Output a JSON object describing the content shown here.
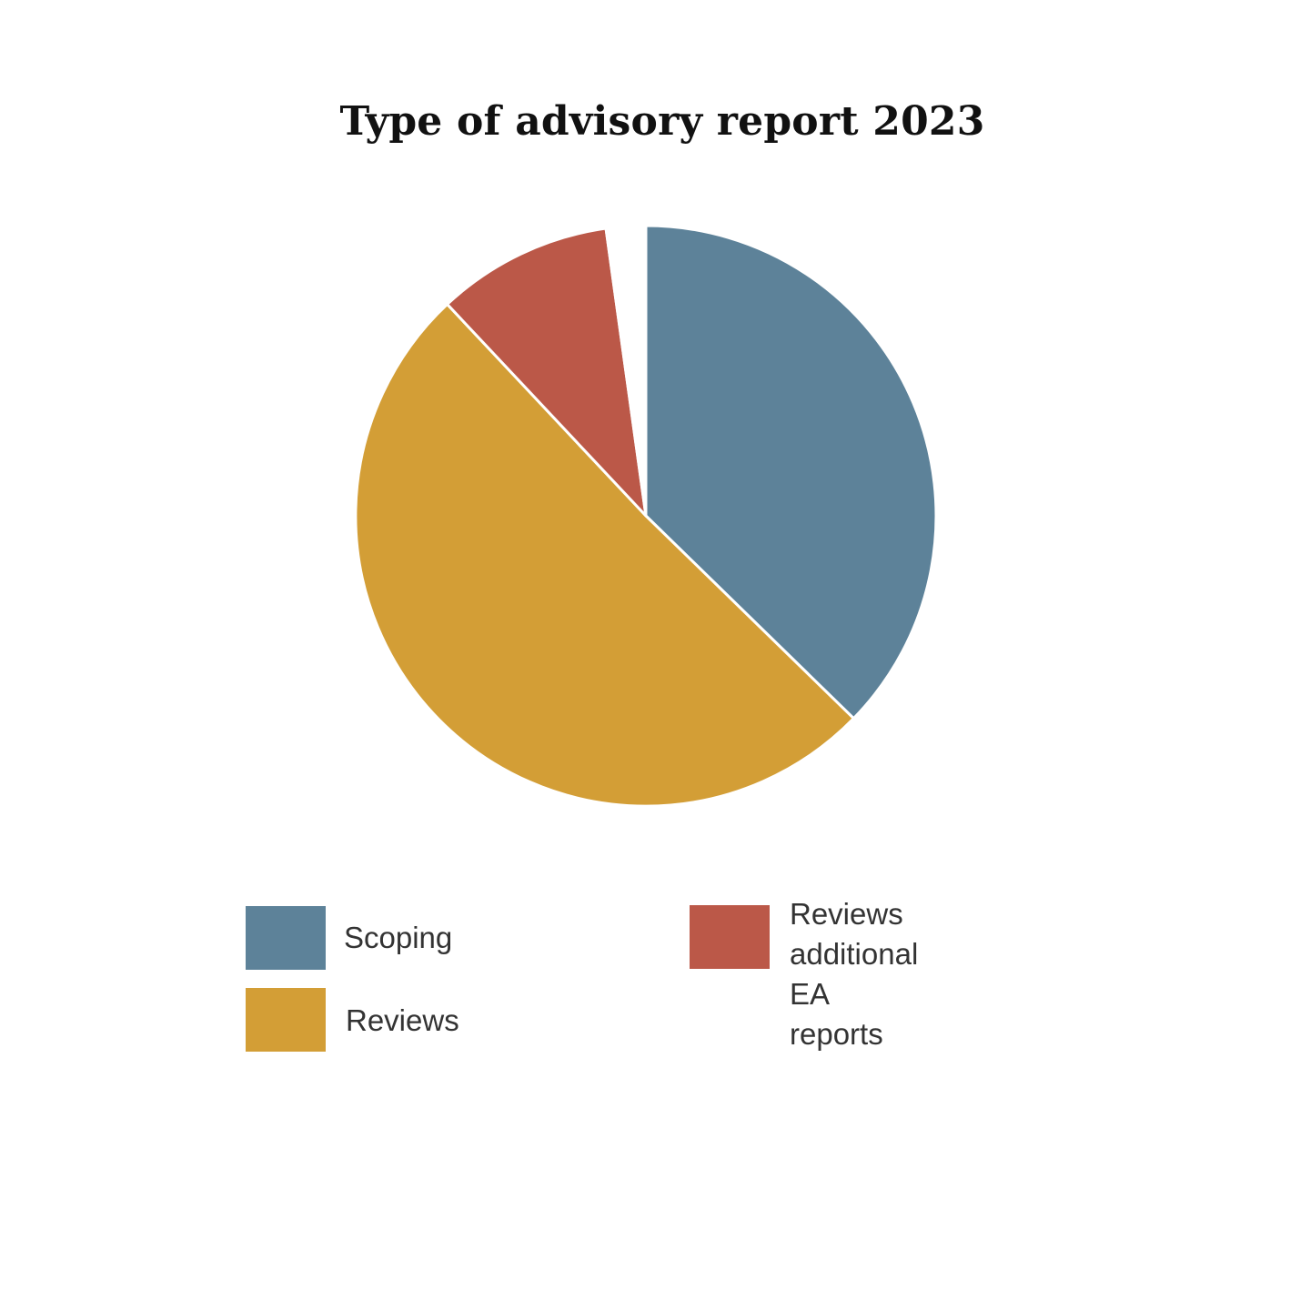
{
  "chart_data": {
    "type": "pie",
    "title": "Type of advisory report 2023",
    "slices": [
      {
        "label": "Scoping",
        "value": 37.3,
        "color": "#5d8299"
      },
      {
        "label": "Reviews",
        "value": 50.7,
        "color": "#d39e36"
      },
      {
        "label": "Reviews additional\nEA reports",
        "value": 9.8,
        "color": "#bb5848"
      },
      {
        "label": "",
        "value": 2.2,
        "color": "#ffffff"
      }
    ],
    "legend_position": "bottom",
    "start_angle_deg": 0,
    "direction": "clockwise"
  },
  "legend": {
    "scoping_label": "Scoping",
    "reviews_label": "Reviews",
    "additional_label": "Reviews additional\nEA reports"
  }
}
